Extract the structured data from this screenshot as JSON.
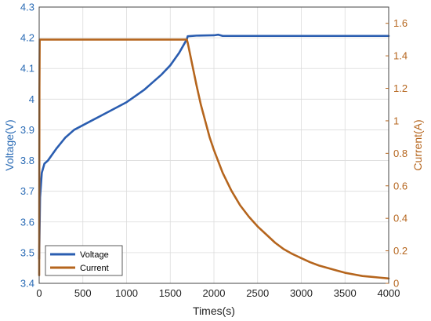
{
  "chart_data": {
    "type": "line",
    "title": "",
    "xlabel": "Times(s)",
    "ylabel_left": "Voltage(V)",
    "ylabel_right": "Current(A)",
    "xlim": [
      0,
      4000
    ],
    "ylim_left": [
      3.4,
      4.3
    ],
    "ylim_right": [
      0,
      1.7
    ],
    "xticks": [
      "0",
      "500",
      "1000",
      "1500",
      "2000",
      "2500",
      "3000",
      "3500",
      "4000"
    ],
    "yticks_left": [
      "3.4",
      "3.5",
      "3.6",
      "3.7",
      "3.8",
      "3.9",
      "4",
      "4.1",
      "4.2",
      "4.3"
    ],
    "yticks_right": [
      "0",
      "0.2",
      "0.4",
      "0.6",
      "0.8",
      "1",
      "1.2",
      "1.4",
      "1.6"
    ],
    "grid": true,
    "legend_position": "bottom-left",
    "colors": {
      "voltage": "#2a5db0",
      "current": "#b5651d",
      "left_axis": "#2a6bb5",
      "right_axis": "#b5651d"
    },
    "series": [
      {
        "name": "Voltage",
        "axis": "left",
        "x": [
          0,
          10,
          30,
          60,
          100,
          200,
          300,
          400,
          500,
          600,
          700,
          800,
          900,
          1000,
          1100,
          1200,
          1300,
          1400,
          1500,
          1600,
          1690,
          1700,
          1800,
          2000,
          2050,
          2100,
          2500,
          3000,
          3500,
          4000
        ],
        "y": [
          3.48,
          3.68,
          3.76,
          3.79,
          3.8,
          3.84,
          3.875,
          3.9,
          3.915,
          3.93,
          3.945,
          3.96,
          3.975,
          3.99,
          4.01,
          4.03,
          4.055,
          4.08,
          4.11,
          4.15,
          4.195,
          4.205,
          4.207,
          4.208,
          4.21,
          4.206,
          4.206,
          4.206,
          4.206,
          4.206
        ]
      },
      {
        "name": "Current",
        "axis": "right",
        "x": [
          0,
          3,
          6,
          10,
          500,
          1000,
          1500,
          1690,
          1700,
          1750,
          1800,
          1850,
          1900,
          1950,
          2000,
          2100,
          2200,
          2300,
          2400,
          2500,
          2600,
          2700,
          2800,
          2900,
          3000,
          3100,
          3200,
          3300,
          3400,
          3500,
          3600,
          3700,
          3800,
          3900,
          4000
        ],
        "y": [
          0.05,
          1.2,
          1.5,
          1.5,
          1.5,
          1.5,
          1.5,
          1.5,
          1.48,
          1.35,
          1.22,
          1.1,
          1.0,
          0.9,
          0.82,
          0.68,
          0.57,
          0.48,
          0.41,
          0.35,
          0.3,
          0.25,
          0.21,
          0.18,
          0.155,
          0.13,
          0.11,
          0.095,
          0.08,
          0.065,
          0.055,
          0.045,
          0.04,
          0.035,
          0.03
        ]
      }
    ]
  }
}
